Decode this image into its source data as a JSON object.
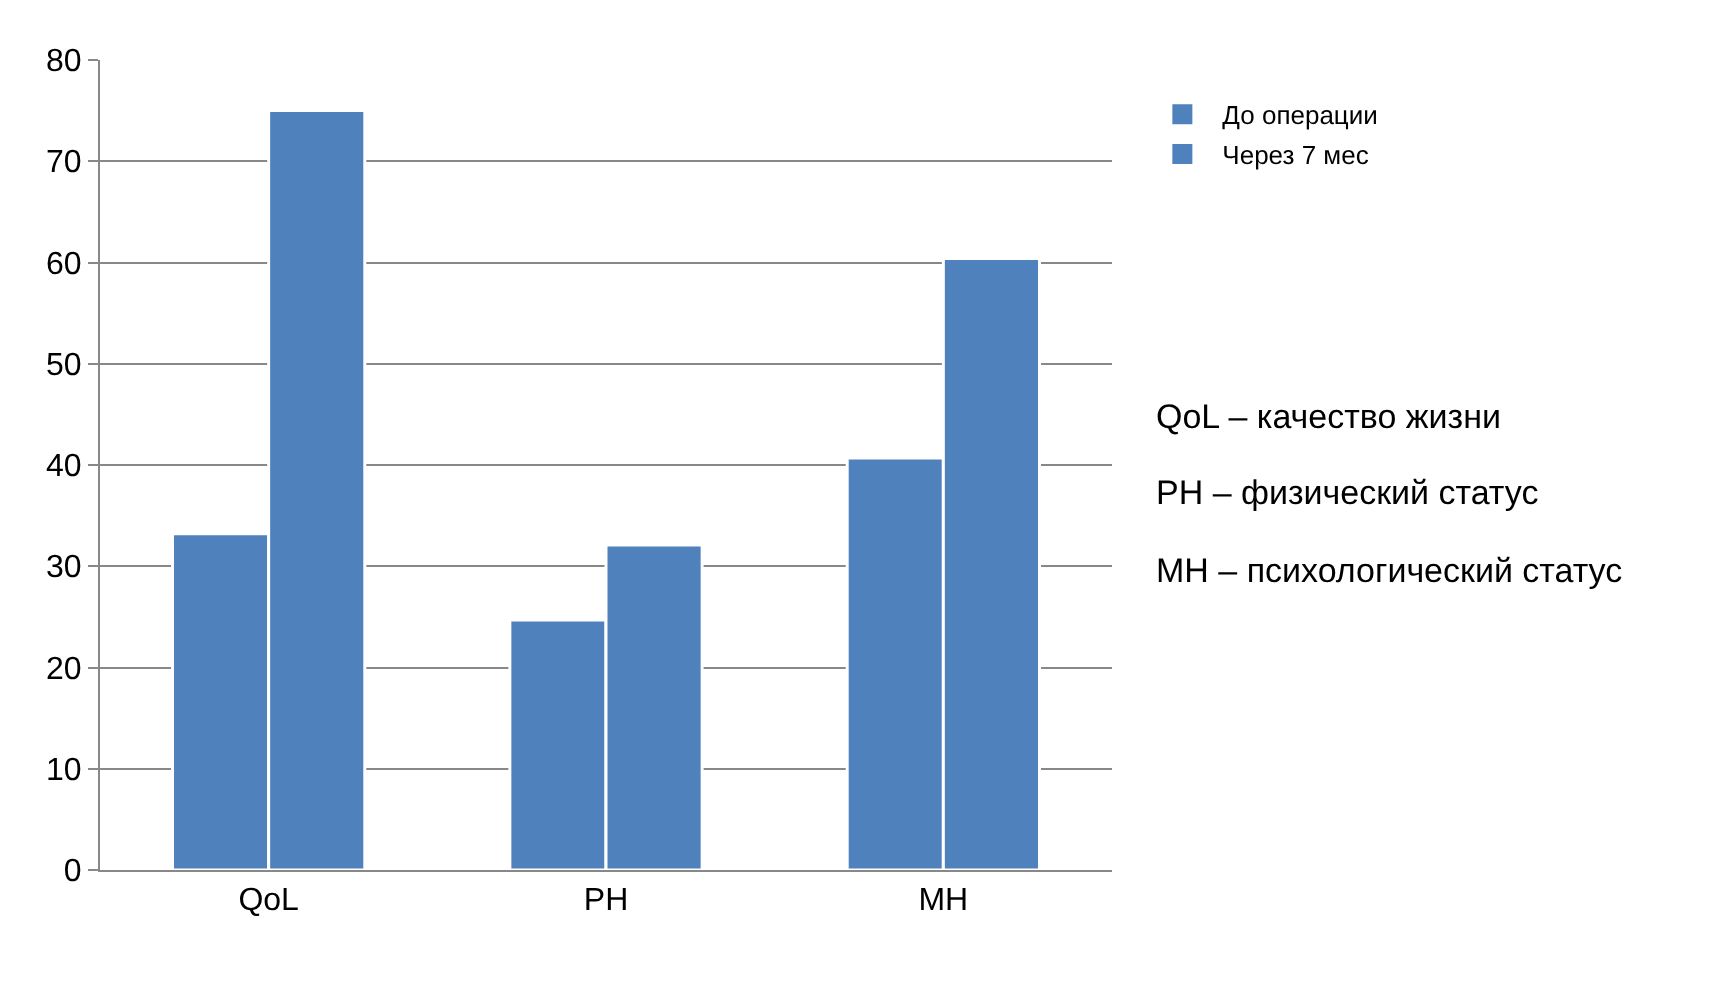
{
  "chart_data": {
    "type": "bar",
    "categories": [
      "QoL",
      "PH",
      "MH"
    ],
    "series": [
      {
        "name": "До операции",
        "color": "#4f81bd",
        "values": [
          33.2,
          24.7,
          40.7
        ]
      },
      {
        "name": "Через 7 мес",
        "color": "#4f81bd",
        "values": [
          75,
          32.1,
          60.4
        ]
      }
    ],
    "ylim": [
      0,
      80
    ],
    "yticks": [
      0,
      10,
      20,
      30,
      40,
      50,
      60,
      70,
      80
    ],
    "grid": "y",
    "legend": "top right",
    "annotations": [
      "QoL – качество жизни",
      "PH – физический статус",
      "MH – психологический статус"
    ]
  }
}
